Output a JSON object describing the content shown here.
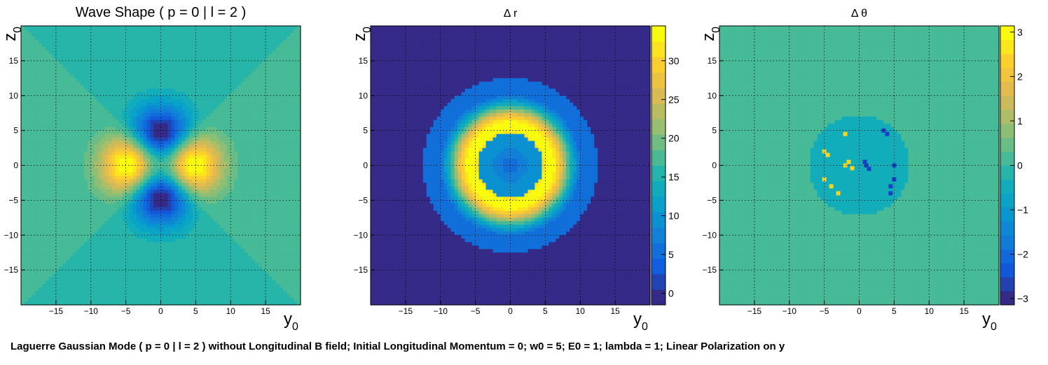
{
  "caption": "Laguerre Gaussian Mode ( p = 0 | l = 2 ) without Longitudinal B field; Initial Longitudinal Momentum = 0; w0 = 5; E0 = 1; lambda = 1; Linear Polarization on y",
  "chart_data": [
    {
      "type": "heatmap",
      "title": "Wave Shape ( p = 0 | l = 2 )",
      "xlabel": "y0",
      "ylabel": "z0",
      "xlim": [
        -20,
        20
      ],
      "ylim": [
        -20,
        20
      ],
      "x_ticks": [
        -15,
        -10,
        -5,
        0,
        5,
        10,
        15
      ],
      "y_ticks": [
        -15,
        -10,
        -5,
        0,
        5,
        10,
        15
      ],
      "grid": true,
      "colorbar": false,
      "features": [
        {
          "kind": "peak",
          "y0": -5,
          "z0": 0,
          "level": "max"
        },
        {
          "kind": "peak",
          "y0": 5,
          "z0": 0,
          "level": "max"
        },
        {
          "kind": "trough",
          "y0": 0,
          "z0": 5,
          "level": "min"
        },
        {
          "kind": "trough",
          "y0": 0,
          "z0": -5,
          "level": "min"
        }
      ]
    },
    {
      "type": "heatmap",
      "title": "Δ r",
      "xlabel": "y0",
      "ylabel": "z0",
      "xlim": [
        -20,
        20
      ],
      "ylim": [
        -20,
        20
      ],
      "x_ticks": [
        -15,
        -10,
        -5,
        0,
        5,
        10,
        15
      ],
      "y_ticks": [
        -15,
        -10,
        -5,
        0,
        5,
        10,
        15
      ],
      "grid": true,
      "colorbar": {
        "min": -1.5,
        "max": 34.5,
        "ticks": [
          0,
          5,
          10,
          15,
          20,
          25,
          30
        ]
      },
      "features": [
        {
          "kind": "ring",
          "center": [
            0,
            0
          ],
          "radius": 5.5,
          "value": 34
        },
        {
          "kind": "disk-edge",
          "center": [
            0,
            0
          ],
          "radius": 12.5,
          "value": 8
        },
        {
          "kind": "inner-core",
          "center": [
            0,
            0
          ],
          "radius": 4.5,
          "value": 7
        }
      ]
    },
    {
      "type": "heatmap",
      "title": "Δ θ",
      "xlabel": "y0",
      "ylabel": "z0",
      "xlim": [
        -20,
        20
      ],
      "ylim": [
        -20,
        20
      ],
      "x_ticks": [
        -15,
        -10,
        -5,
        0,
        5,
        10,
        15
      ],
      "y_ticks": [
        -15,
        -10,
        -5,
        0,
        5,
        10,
        15
      ],
      "grid": true,
      "colorbar": {
        "min": -3.14,
        "max": 3.14,
        "ticks": [
          -3,
          -2,
          -1,
          0,
          1,
          2,
          3
        ]
      },
      "features": [
        {
          "kind": "disk",
          "center": [
            0,
            0
          ],
          "radius": 7,
          "value": -0.4
        },
        {
          "kind": "spots",
          "y0": -1,
          "z0": 0,
          "value": 3
        },
        {
          "kind": "spots",
          "y0": 1,
          "z0": 0,
          "value": -3
        }
      ]
    }
  ]
}
